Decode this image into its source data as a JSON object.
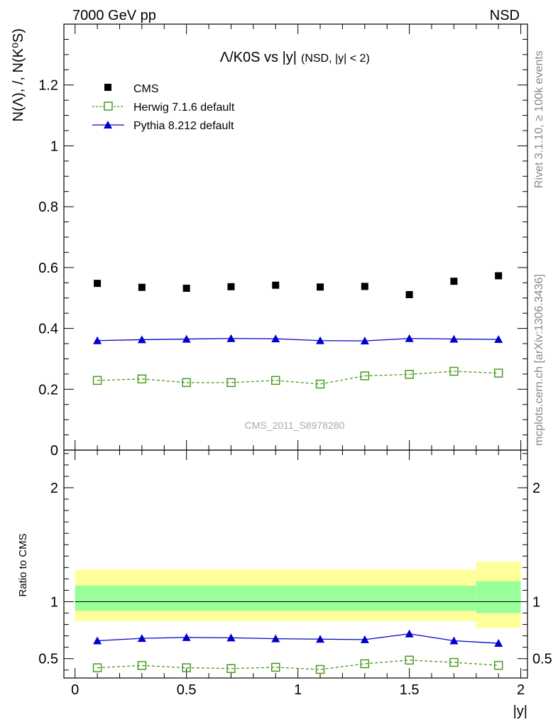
{
  "header": {
    "left": "7000 GeV pp",
    "right": "NSD"
  },
  "side_text": {
    "rivet": "Rivet 3.1.10, ≥ 100k events",
    "mcplots": "mcplots.cern.ch [arXiv:1306.3436]"
  },
  "watermark": "CMS_2011_S8978280",
  "chart_data": [
    {
      "panel": "main",
      "type": "scatter",
      "title": "Λ/K0S vs |y|",
      "title_suffix": "(NSD, |y| < 2)",
      "ylabel": "N(Λ), /, N(K⁰S)",
      "xlim": [
        -0.05,
        2.03
      ],
      "ylim": [
        0,
        1.4
      ],
      "yticks": [
        0,
        0.2,
        0.4,
        0.6,
        0.8,
        1,
        1.2
      ],
      "ytick_labels": [
        "0",
        "0.2",
        "0.4",
        "0.6",
        "0.8",
        "1",
        "1.2"
      ],
      "legend_position": "top-left",
      "x": [
        0.1,
        0.3,
        0.5,
        0.7,
        0.9,
        1.1,
        1.3,
        1.5,
        1.7,
        1.9
      ],
      "series": [
        {
          "name": "CMS",
          "marker": "filled-square",
          "color": "#000000",
          "line": "none",
          "values": [
            0.548,
            0.535,
            0.532,
            0.537,
            0.542,
            0.536,
            0.538,
            0.511,
            0.555,
            0.573
          ]
        },
        {
          "name": "Herwig 7.1.6 default",
          "marker": "open-square",
          "color": "#4a9a1e",
          "line": "dashed",
          "values": [
            0.229,
            0.234,
            0.222,
            0.222,
            0.229,
            0.217,
            0.244,
            0.249,
            0.259,
            0.253
          ]
        },
        {
          "name": "Pythia 8.212 default",
          "marker": "filled-triangle",
          "color": "#0000cc",
          "line": "solid",
          "values": [
            0.36,
            0.363,
            0.365,
            0.367,
            0.366,
            0.36,
            0.359,
            0.367,
            0.365,
            0.364
          ]
        }
      ]
    },
    {
      "panel": "ratio",
      "type": "line",
      "ylabel": "Ratio to CMS",
      "xlabel": "|y|",
      "xlim": [
        -0.05,
        2.03
      ],
      "ylim": [
        0.33,
        2.33
      ],
      "xticks": [
        0,
        0.5,
        1,
        1.5,
        2
      ],
      "xtick_labels": [
        "0",
        "0.5",
        "1",
        "1.5",
        "2"
      ],
      "yticks": [
        0.5,
        1,
        2
      ],
      "ytick_labels": [
        "0.5",
        "1",
        "2"
      ],
      "bands": [
        {
          "x0": 0.0,
          "x1": 1.8,
          "outer": [
            0.83,
            1.28
          ],
          "inner": [
            0.92,
            1.14
          ]
        },
        {
          "x0": 1.8,
          "x1": 2.0,
          "outer": [
            0.77,
            1.35
          ],
          "inner": [
            0.9,
            1.18
          ]
        }
      ],
      "colors": {
        "outer_band": "#ffff99",
        "inner_band": "#99ff99"
      },
      "x": [
        0.1,
        0.3,
        0.5,
        0.7,
        0.9,
        1.1,
        1.3,
        1.5,
        1.7,
        1.9
      ],
      "series": [
        {
          "name": "Herwig 7.1.6 default",
          "color": "#4a9a1e",
          "values": [
            0.42,
            0.44,
            0.42,
            0.413,
            0.424,
            0.405,
            0.455,
            0.487,
            0.467,
            0.441
          ]
        },
        {
          "name": "Pythia 8.212 default",
          "color": "#0000cc",
          "values": [
            0.657,
            0.678,
            0.686,
            0.683,
            0.675,
            0.671,
            0.667,
            0.718,
            0.657,
            0.635
          ]
        }
      ]
    }
  ]
}
